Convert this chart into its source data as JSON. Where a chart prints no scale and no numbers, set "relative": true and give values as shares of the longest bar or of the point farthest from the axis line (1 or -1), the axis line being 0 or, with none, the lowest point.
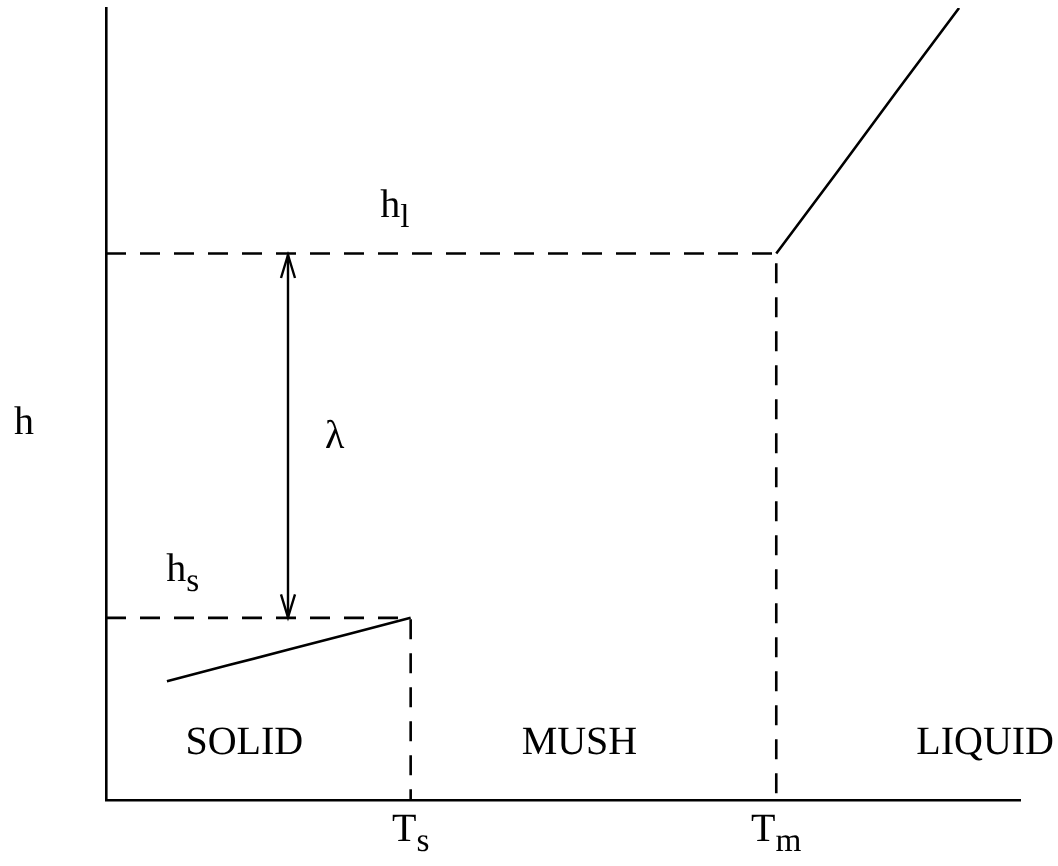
{
  "chart_data": {
    "type": "line",
    "relative": true,
    "ylabel": "h",
    "tick_labels": "x",
    "marker": "none",
    "categories": [
      null,
      null,
      null,
      null,
      null,
      "T$_{s}$",
      null,
      null,
      null,
      null,
      null,
      "T$_{m}$",
      null,
      null,
      null,
      null
    ],
    "series": [
      {
        "color": "#000000",
        "values": [
          null,
          0.15,
          0.17,
          0.19,
          0.21,
          0.23,
          null,
          null,
          null,
          null,
          null,
          0.69,
          0.793,
          0.897,
          1,
          null
        ]
      },
      {
        "name": "h$_{l}$",
        "type": "step",
        "color": "#000000",
        "line_style": "dashed",
        "values": [
          0.69,
          0.69,
          0.69,
          0.69,
          0.69,
          0.69,
          0.69,
          0.69,
          0.69,
          0.69,
          0.69,
          0,
          null,
          null,
          null,
          null
        ]
      },
      {
        "name": "h$_{s}$",
        "type": "step",
        "color": "#000000",
        "line_style": "dashed",
        "values": [
          0.23,
          0.23,
          0.23,
          0.23,
          0.23,
          0,
          null,
          null,
          null,
          null,
          null,
          null,
          null,
          null,
          null,
          null
        ]
      }
    ],
    "annotations": [
      "λ",
      "SOLID",
      "MUSH",
      "LIQUID"
    ]
  }
}
